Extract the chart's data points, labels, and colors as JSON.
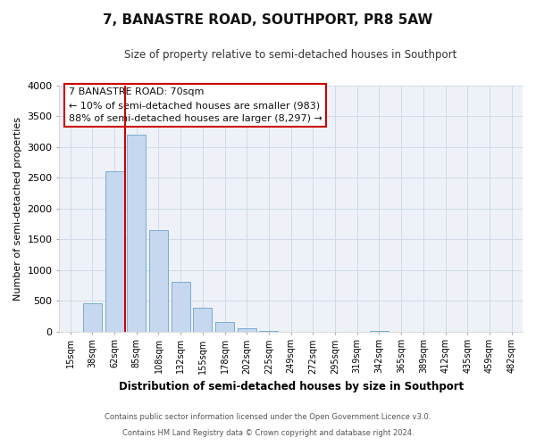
{
  "title": "7, BANASTRE ROAD, SOUTHPORT, PR8 5AW",
  "subtitle": "Size of property relative to semi-detached houses in Southport",
  "xlabel": "Distribution of semi-detached houses by size in Southport",
  "ylabel": "Number of semi-detached properties",
  "footer1": "Contains HM Land Registry data © Crown copyright and database right 2024.",
  "footer2": "Contains public sector information licensed under the Open Government Licence v3.0.",
  "bar_labels": [
    "15sqm",
    "38sqm",
    "62sqm",
    "85sqm",
    "108sqm",
    "132sqm",
    "155sqm",
    "178sqm",
    "202sqm",
    "225sqm",
    "249sqm",
    "272sqm",
    "295sqm",
    "319sqm",
    "342sqm",
    "365sqm",
    "389sqm",
    "412sqm",
    "435sqm",
    "459sqm",
    "482sqm"
  ],
  "bar_values": [
    0,
    460,
    2600,
    3200,
    1640,
    800,
    390,
    155,
    55,
    10,
    0,
    0,
    0,
    0,
    5,
    0,
    0,
    0,
    0,
    0,
    0
  ],
  "bar_color": "#c5d8ef",
  "bar_edge_color": "#7aadd4",
  "vline_x": 2.5,
  "vline_color": "#cc0000",
  "ylim": [
    0,
    4000
  ],
  "yticks": [
    0,
    500,
    1000,
    1500,
    2000,
    2500,
    3000,
    3500,
    4000
  ],
  "annotation_title": "7 BANASTRE ROAD: 70sqm",
  "annotation_line1": "← 10% of semi-detached houses are smaller (983)",
  "annotation_line2": "88% of semi-detached houses are larger (8,297) →",
  "annotation_box_facecolor": "#ffffff",
  "annotation_box_edgecolor": "#cc0000",
  "grid_color": "#d0daea",
  "bg_color": "#eef2f8",
  "fig_bg_color": "#ffffff"
}
